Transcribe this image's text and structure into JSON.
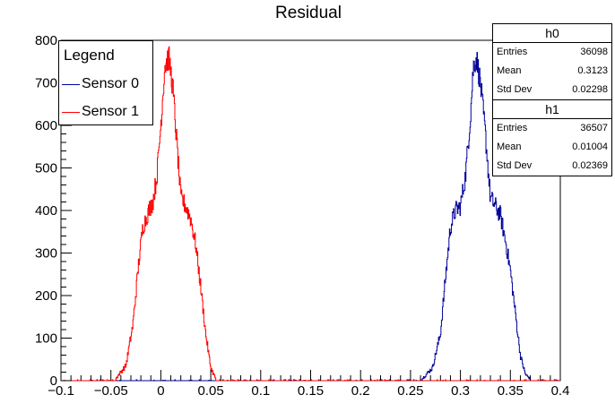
{
  "chart_data": {
    "type": "histogram",
    "title": "Residual",
    "xlim": [
      -0.1,
      0.4
    ],
    "ylim": [
      0,
      800
    ],
    "x_ticks": [
      -0.1,
      -0.05,
      0,
      0.05,
      0.1,
      0.15,
      0.2,
      0.25,
      0.3,
      0.35,
      0.4
    ],
    "x_tick_labels": [
      "−0.1",
      "−0.05",
      "0",
      "0.05",
      "0.1",
      "0.15",
      "0.2",
      "0.25",
      "0.3",
      "0.35",
      "0.4"
    ],
    "y_ticks": [
      0,
      100,
      200,
      300,
      400,
      500,
      600,
      700,
      800
    ],
    "y_tick_labels": [
      "0",
      "100",
      "200",
      "300",
      "400",
      "500",
      "600",
      "700",
      "800"
    ],
    "grid": false,
    "legend": {
      "title": "Legend",
      "position": "top-left",
      "entries": [
        {
          "label": "Sensor 0",
          "color": "#000099"
        },
        {
          "label": "Sensor 1",
          "color": "#ff0000"
        }
      ]
    },
    "series": [
      {
        "name": "Sensor 0",
        "color": "#000099",
        "peaks": [
          {
            "x": [
              0.262,
              0.272,
              0.28,
              0.285,
              0.29,
              0.295,
              0.3,
              0.305,
              0.31,
              0.313,
              0.316,
              0.32,
              0.325,
              0.33,
              0.335,
              0.34,
              0.345,
              0.35,
              0.355,
              0.36,
              0.365,
              0.37
            ],
            "y": [
              5,
              30,
              110,
              240,
              360,
              400,
              410,
              480,
              620,
              740,
              760,
              700,
              580,
              430,
              410,
              390,
              330,
              260,
              160,
              60,
              15,
              4
            ]
          }
        ]
      },
      {
        "name": "Sensor 1",
        "color": "#ff0000",
        "peaks": [
          {
            "x": [
              -0.045,
              -0.035,
              -0.028,
              -0.022,
              -0.018,
              -0.012,
              -0.008,
              -0.004,
              0.0,
              0.004,
              0.008,
              0.012,
              0.016,
              0.02,
              0.025,
              0.03,
              0.035,
              0.04,
              0.045,
              0.05,
              0.055
            ],
            "y": [
              5,
              35,
              130,
              280,
              360,
              400,
              420,
              480,
              600,
              740,
              760,
              690,
              560,
              430,
              410,
              380,
              320,
              220,
              110,
              30,
              5
            ]
          }
        ]
      }
    ]
  },
  "stats": [
    {
      "title": "h0",
      "rows": [
        {
          "label": "Entries",
          "value": "36098"
        },
        {
          "label": "Mean",
          "value": "0.3123"
        },
        {
          "label": "Std Dev",
          "value": "0.02298"
        }
      ]
    },
    {
      "title": "h1",
      "rows": [
        {
          "label": "Entries",
          "value": "36507"
        },
        {
          "label": "Mean",
          "value": "0.01004"
        },
        {
          "label": "Std Dev",
          "value": "0.02369"
        }
      ]
    }
  ]
}
